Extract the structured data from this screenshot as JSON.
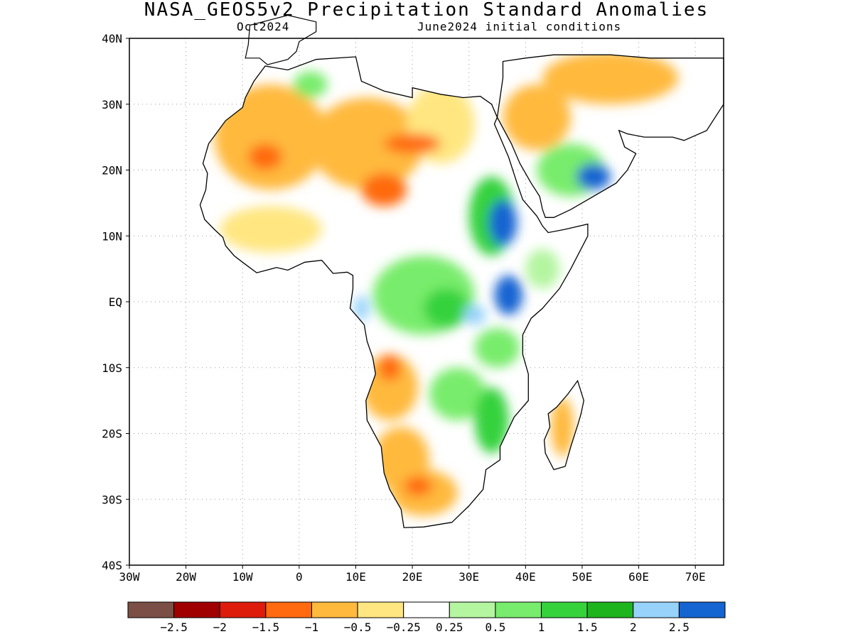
{
  "header": {
    "title": "NASA_GEOS5v2 Precipitation Standard Anomalies",
    "month": "Oct2024",
    "init": "June2024 initial conditions"
  },
  "map": {
    "lon_range": [
      -30,
      75
    ],
    "lat_range": [
      -40,
      40
    ],
    "lon_ticks": [
      {
        "v": -30,
        "label": "30W"
      },
      {
        "v": -20,
        "label": "20W"
      },
      {
        "v": -10,
        "label": "10W"
      },
      {
        "v": 0,
        "label": "0"
      },
      {
        "v": 10,
        "label": "10E"
      },
      {
        "v": 20,
        "label": "20E"
      },
      {
        "v": 30,
        "label": "30E"
      },
      {
        "v": 40,
        "label": "40E"
      },
      {
        "v": 50,
        "label": "50E"
      },
      {
        "v": 60,
        "label": "60E"
      },
      {
        "v": 70,
        "label": "70E"
      }
    ],
    "lat_ticks": [
      {
        "v": 40,
        "label": "40N"
      },
      {
        "v": 30,
        "label": "30N"
      },
      {
        "v": 20,
        "label": "20N"
      },
      {
        "v": 10,
        "label": "10N"
      },
      {
        "v": 0,
        "label": "EQ"
      },
      {
        "v": -10,
        "label": "10S"
      },
      {
        "v": -20,
        "label": "20S"
      },
      {
        "v": -30,
        "label": "30S"
      },
      {
        "v": -40,
        "label": "40S"
      }
    ],
    "grid": "dotted"
  },
  "colorbar": {
    "colors": [
      "#7b4f45",
      "#a00000",
      "#dd1c0c",
      "#ff6a10",
      "#ffb93c",
      "#ffe680",
      "#ffffff",
      "#b4f5a0",
      "#78ec6c",
      "#36d23c",
      "#1eb41e",
      "#96d2fa",
      "#1464d2"
    ],
    "labels": [
      "−2.5",
      "−2",
      "−1.5",
      "−1",
      "−0.5",
      "−0.25",
      "0.25",
      "0.5",
      "1",
      "1.5",
      "2",
      "2.5"
    ]
  },
  "anomaly_regions": [
    {
      "name": "sahara-west",
      "lon": -5,
      "lat": 25,
      "rx": 10,
      "ry": 8,
      "c": "#ffb93c"
    },
    {
      "name": "sahara-central",
      "lon": 12,
      "lat": 24,
      "rx": 10,
      "ry": 7,
      "c": "#ffb93c"
    },
    {
      "name": "egypt",
      "lon": 25,
      "lat": 27,
      "rx": 6,
      "ry": 6,
      "c": "#ffe680"
    },
    {
      "name": "sahara-orange-1",
      "lon": -6,
      "lat": 22,
      "rx": 3,
      "ry": 2,
      "c": "#ff6a10"
    },
    {
      "name": "sahara-orange-2",
      "lon": 20,
      "lat": 24,
      "rx": 5,
      "ry": 1.5,
      "c": "#ff6a10"
    },
    {
      "name": "sahel-orange",
      "lon": 15,
      "lat": 17,
      "rx": 4,
      "ry": 2.5,
      "c": "#ff6a10"
    },
    {
      "name": "atlas-green",
      "lon": 2,
      "lat": 33,
      "rx": 3,
      "ry": 2,
      "c": "#78ec6c"
    },
    {
      "name": "west-africa",
      "lon": -5,
      "lat": 11,
      "rx": 9,
      "ry": 3.5,
      "c": "#ffe680"
    },
    {
      "name": "sudan-east",
      "lon": 34,
      "lat": 13,
      "rx": 4,
      "ry": 6,
      "c": "#36d23c"
    },
    {
      "name": "ethiopia-blue",
      "lon": 36,
      "lat": 12,
      "rx": 2.5,
      "ry": 3.5,
      "c": "#1464d2"
    },
    {
      "name": "congo-green",
      "lon": 22,
      "lat": 1,
      "rx": 9,
      "ry": 6,
      "c": "#78ec6c"
    },
    {
      "name": "congo-dark",
      "lon": 26,
      "lat": -1,
      "rx": 4,
      "ry": 3,
      "c": "#36d23c"
    },
    {
      "name": "east-africa-blue",
      "lon": 37,
      "lat": 1,
      "rx": 2.5,
      "ry": 3,
      "c": "#1464d2"
    },
    {
      "name": "lake-victoria-lightblue",
      "lon": 31,
      "lat": -2,
      "rx": 2,
      "ry": 1.5,
      "c": "#96d2fa"
    },
    {
      "name": "gabon-lightblue",
      "lon": 11,
      "lat": -1,
      "rx": 1.3,
      "ry": 2,
      "c": "#96d2fa"
    },
    {
      "name": "arabia-green",
      "lon": 48,
      "lat": 20,
      "rx": 6,
      "ry": 4,
      "c": "#78ec6c"
    },
    {
      "name": "arabia-blue",
      "lon": 52,
      "lat": 19,
      "rx": 3,
      "ry": 2,
      "c": "#1464d2"
    },
    {
      "name": "arabia-orange",
      "lon": 42,
      "lat": 28,
      "rx": 6,
      "ry": 5,
      "c": "#ffb93c"
    },
    {
      "name": "middle-east-north",
      "lon": 55,
      "lat": 34,
      "rx": 12,
      "ry": 4,
      "c": "#ffb93c"
    },
    {
      "name": "angola-orange",
      "lon": 16,
      "lat": -13,
      "rx": 5,
      "ry": 5,
      "c": "#ffb93c"
    },
    {
      "name": "angola-redorange",
      "lon": 16,
      "lat": -10,
      "rx": 2,
      "ry": 2,
      "c": "#ff6a10"
    },
    {
      "name": "zambia-green",
      "lon": 28,
      "lat": -14,
      "rx": 5,
      "ry": 4,
      "c": "#78ec6c"
    },
    {
      "name": "mozambique-green",
      "lon": 34,
      "lat": -18,
      "rx": 3,
      "ry": 5,
      "c": "#36d23c"
    },
    {
      "name": "namibia-orange",
      "lon": 18,
      "lat": -24,
      "rx": 5,
      "ry": 5,
      "c": "#ffb93c"
    },
    {
      "name": "south-africa-orange",
      "lon": 22,
      "lat": -29,
      "rx": 6,
      "ry": 3.5,
      "c": "#ffb93c"
    },
    {
      "name": "south-africa-red",
      "lon": 21,
      "lat": -28,
      "rx": 2.5,
      "ry": 1.5,
      "c": "#ff6a10"
    },
    {
      "name": "madagascar-orange",
      "lon": 46.5,
      "lat": -19,
      "rx": 2,
      "ry": 4.5,
      "c": "#ffb93c"
    },
    {
      "name": "tanzania-green",
      "lon": 35,
      "lat": -7,
      "rx": 4,
      "ry": 3,
      "c": "#78ec6c"
    },
    {
      "name": "somalia-green",
      "lon": 43,
      "lat": 5,
      "rx": 3,
      "ry": 3,
      "c": "#b4f5a0"
    }
  ]
}
